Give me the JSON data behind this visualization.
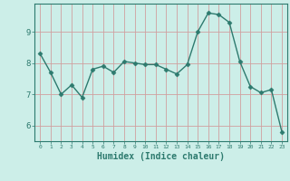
{
  "x": [
    0,
    1,
    2,
    3,
    4,
    5,
    6,
    7,
    8,
    9,
    10,
    11,
    12,
    13,
    14,
    15,
    16,
    17,
    18,
    19,
    20,
    21,
    22,
    23
  ],
  "y": [
    8.3,
    7.7,
    7.0,
    7.3,
    6.9,
    7.8,
    7.9,
    7.7,
    8.05,
    8.0,
    7.95,
    7.95,
    7.8,
    7.65,
    7.95,
    9.0,
    9.6,
    9.55,
    9.3,
    8.05,
    7.25,
    7.05,
    7.15,
    5.8
  ],
  "line_color": "#2d7a6e",
  "marker": "D",
  "markersize": 2.5,
  "linewidth": 1.0,
  "background_color": "#cceee8",
  "grid_color": "#d0a0a0",
  "tick_color": "#2d7a6e",
  "xlabel": "Humidex (Indice chaleur)",
  "xlabel_fontsize": 7,
  "xlim": [
    -0.5,
    23.5
  ],
  "ylim": [
    5.5,
    9.9
  ],
  "yticks": [
    6,
    7,
    8,
    9
  ],
  "xticks": [
    0,
    1,
    2,
    3,
    4,
    5,
    6,
    7,
    8,
    9,
    10,
    11,
    12,
    13,
    14,
    15,
    16,
    17,
    18,
    19,
    20,
    21,
    22,
    23
  ],
  "figsize": [
    3.2,
    2.0
  ],
  "dpi": 100
}
